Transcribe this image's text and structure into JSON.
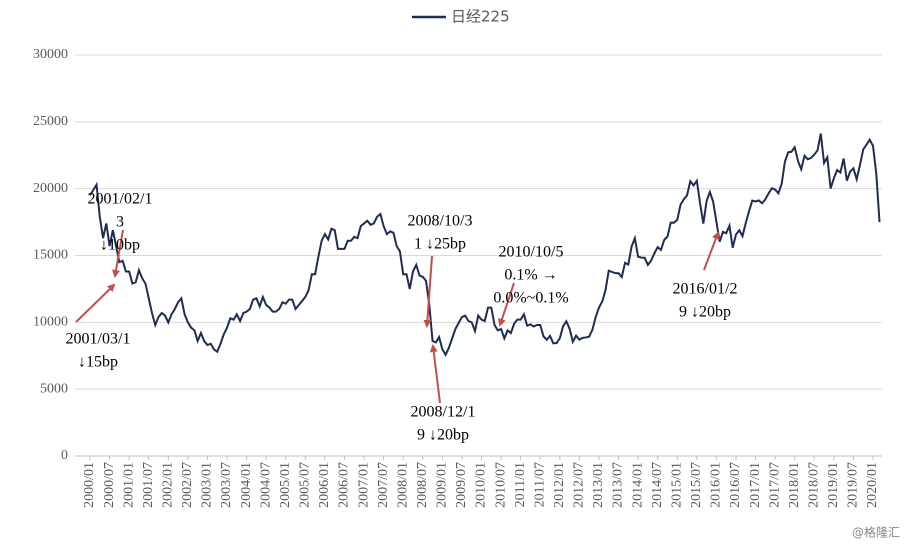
{
  "chart_data": {
    "type": "line",
    "categories": [
      "2000/01",
      null,
      null,
      null,
      null,
      null,
      "2000/07",
      null,
      null,
      null,
      null,
      null,
      "2001/01",
      null,
      null,
      null,
      null,
      null,
      "2001/07",
      null,
      null,
      null,
      null,
      null,
      "2002/01",
      null,
      null,
      null,
      null,
      null,
      "2002/07",
      null,
      null,
      null,
      null,
      null,
      "2003/01",
      null,
      null,
      null,
      null,
      null,
      "2003/07",
      null,
      null,
      null,
      null,
      null,
      "2004/01",
      null,
      null,
      null,
      null,
      null,
      "2004/07",
      null,
      null,
      null,
      null,
      null,
      "2005/01",
      null,
      null,
      null,
      null,
      null,
      "2005/07",
      null,
      null,
      null,
      null,
      null,
      "2006/01",
      null,
      null,
      null,
      null,
      null,
      "2006/07",
      null,
      null,
      null,
      null,
      null,
      "2007/01",
      null,
      null,
      null,
      null,
      null,
      "2007/07",
      null,
      null,
      null,
      null,
      null,
      "2008/01",
      null,
      null,
      null,
      null,
      null,
      "2008/07",
      null,
      null,
      null,
      null,
      null,
      "2009/01",
      null,
      null,
      null,
      null,
      null,
      "2009/07",
      null,
      null,
      null,
      null,
      null,
      "2010/01",
      null,
      null,
      null,
      null,
      null,
      "2010/07",
      null,
      null,
      null,
      null,
      null,
      "2011/01",
      null,
      null,
      null,
      null,
      null,
      "2011/07",
      null,
      null,
      null,
      null,
      null,
      "2012/01",
      null,
      null,
      null,
      null,
      null,
      "2012/07",
      null,
      null,
      null,
      null,
      null,
      "2013/01",
      null,
      null,
      null,
      null,
      null,
      "2013/07",
      null,
      null,
      null,
      null,
      null,
      "2014/01",
      null,
      null,
      null,
      null,
      null,
      "2014/07",
      null,
      null,
      null,
      null,
      null,
      "2015/01",
      null,
      null,
      null,
      null,
      null,
      "2015/07",
      null,
      null,
      null,
      null,
      null,
      "2016/01",
      null,
      null,
      null,
      null,
      null,
      "2016/07",
      null,
      null,
      null,
      null,
      null,
      "2017/01",
      null,
      null,
      null,
      null,
      null,
      "2017/07",
      null,
      null,
      null,
      null,
      null,
      "2018/01",
      null,
      null,
      null,
      null,
      null,
      "2018/07",
      null,
      null,
      null,
      null,
      null,
      "2019/01",
      null,
      null,
      null,
      null,
      null,
      "2019/07",
      null,
      null,
      null,
      null,
      null,
      "2020/01",
      null,
      null
    ],
    "series": [
      {
        "name": "日经225",
        "color": "#1f2d54",
        "values": [
          19500,
          19900,
          20300,
          17900,
          16300,
          17400,
          15700,
          16900,
          15700,
          14500,
          14600,
          13800,
          13800,
          12900,
          12999,
          13900,
          13300,
          12900,
          11800,
          10700,
          9800,
          10400,
          10700,
          10500,
          9990,
          10600,
          11000,
          11500,
          11800,
          10600,
          10000,
          9600,
          9400,
          8600,
          9200,
          8600,
          8300,
          8400,
          7970,
          7800,
          8400,
          9100,
          9600,
          10300,
          10200,
          10600,
          10100,
          10700,
          10800,
          11000,
          11700,
          11800,
          11200,
          11900,
          11300,
          11100,
          10800,
          10800,
          11000,
          11500,
          11400,
          11700,
          11700,
          11000,
          11300,
          11600,
          11900,
          12400,
          13600,
          13600,
          14900,
          16100,
          16600,
          16200,
          17000,
          16900,
          15500,
          15500,
          15500,
          16100,
          16100,
          16400,
          16300,
          17200,
          17400,
          17600,
          17300,
          17400,
          17900,
          18100,
          17200,
          16600,
          16800,
          16700,
          15700,
          15300,
          13600,
          13600,
          12500,
          13800,
          14300,
          13500,
          13400,
          13100,
          11300,
          8600,
          8500,
          8900,
          7990,
          7570,
          8100,
          8800,
          9500,
          9960,
          10400,
          10500,
          10100,
          10000,
          9350,
          10500,
          10200,
          10100,
          11100,
          11100,
          9800,
          9400,
          9500,
          8800,
          9400,
          9200,
          9900,
          10200,
          10200,
          10600,
          9750,
          9850,
          9690,
          9800,
          9800,
          8950,
          8700,
          8990,
          8430,
          8450,
          8800,
          9700,
          10080,
          9520,
          8540,
          9000,
          8700,
          8840,
          8870,
          8930,
          9450,
          10400,
          11100,
          11560,
          12400,
          13860,
          13770,
          13680,
          13670,
          13390,
          14450,
          14330,
          15660,
          16290,
          14910,
          14840,
          14830,
          14300,
          14630,
          15160,
          15620,
          15420,
          16170,
          16410,
          17460,
          17450,
          17670,
          18800,
          19200,
          19500,
          20560,
          20240,
          20590,
          18890,
          17390,
          19080,
          19750,
          19030,
          17520,
          16030,
          16760,
          16670,
          17230,
          15580,
          16570,
          16890,
          16450,
          17430,
          18310,
          19110,
          19040,
          19120,
          18910,
          19200,
          19650,
          20030,
          19930,
          19650,
          20360,
          22010,
          22720,
          22760,
          23100,
          22070,
          21450,
          22470,
          22200,
          22300,
          22550,
          22870,
          24120,
          21920,
          22350,
          20010,
          20770,
          21390,
          21210,
          22260,
          20600,
          21280,
          21520,
          20700,
          21760,
          22930,
          23290,
          23660,
          23200,
          21140,
          17500
        ]
      }
    ],
    "ylim": [
      0,
      30000
    ],
    "yticks": [
      0,
      5000,
      10000,
      15000,
      20000,
      25000,
      30000
    ],
    "annotations": [
      {
        "lines": [
          "2001/02/1",
          "3",
          "↓10bp"
        ]
      },
      {
        "lines": [
          "2001/03/1",
          "↓15bp"
        ]
      },
      {
        "lines": [
          "2008/10/3",
          "1 ↓25bp"
        ]
      },
      {
        "lines": [
          "2008/12/1",
          "9 ↓20bp"
        ]
      },
      {
        "lines": [
          "2010/10/5",
          "0.1% →",
          "0.0%~0.1%"
        ]
      },
      {
        "lines": [
          "2016/01/2",
          "9 ↓20bp"
        ]
      }
    ],
    "watermark": "@格隆汇"
  }
}
